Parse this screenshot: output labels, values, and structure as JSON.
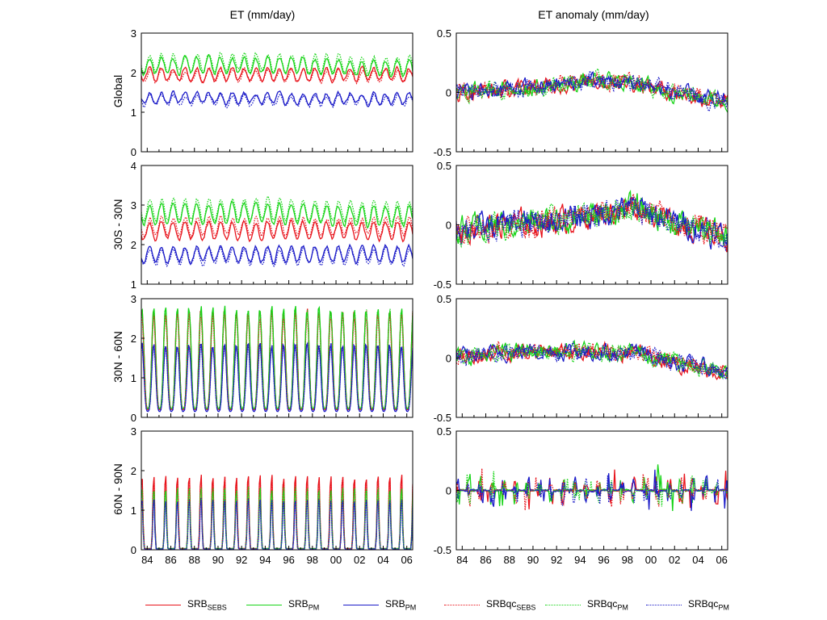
{
  "column_titles": {
    "left": "ET (mm/day)",
    "right": "ET anomaly (mm/day)"
  },
  "row_labels": [
    "Global",
    "30S - 30N",
    "30N - 60N",
    "60N - 90N"
  ],
  "x_tick_labels": [
    "84",
    "86",
    "88",
    "90",
    "92",
    "94",
    "96",
    "98",
    "00",
    "02",
    "04",
    "06"
  ],
  "legend": [
    {
      "base": "SRB",
      "sub": "SEBS",
      "color": "#e8141c",
      "style": "solid"
    },
    {
      "base": "SRB",
      "sub": "PM",
      "color": "#18d418",
      "style": "solid"
    },
    {
      "base": "SRB",
      "sub": "PM",
      "color": "#1c1cc8",
      "style": "solid"
    },
    {
      "base": "SRBqc",
      "sub": "SEBS",
      "color": "#e8141c",
      "style": "dotted"
    },
    {
      "base": "SRBqc",
      "sub": "PM",
      "color": "#18d418",
      "style": "dotted"
    },
    {
      "base": "SRBqc",
      "sub": "PM",
      "color": "#1c1cc8",
      "style": "dotted"
    }
  ],
  "colors": {
    "red": "#e8141c",
    "green": "#18d418",
    "blue": "#1c1cc8",
    "axis": "#000000"
  },
  "chart_data": [
    {
      "panel": "ET-Global",
      "type": "line",
      "x_range": [
        1983.5,
        2006.5
      ],
      "ylim": [
        0,
        3
      ],
      "y_ticks": [
        "0",
        "1",
        "2",
        "3"
      ],
      "x_years": [
        1984,
        2006
      ],
      "months_per_point": 1,
      "series": [
        {
          "color": "#e8141c",
          "style": "solid",
          "mean": 1.95,
          "amplitude": 0.16,
          "phase": 0,
          "trend": 0.0
        },
        {
          "color": "#18d418",
          "style": "solid",
          "mean": 2.15,
          "amplitude": 0.2,
          "phase": 0,
          "trend": 0.05
        },
        {
          "color": "#1c1cc8",
          "style": "solid",
          "mean": 1.35,
          "amplitude": 0.14,
          "phase": 0,
          "trend": 0.0
        },
        {
          "color": "#e8141c",
          "style": "dotted",
          "mean": 1.92,
          "amplitude": 0.15,
          "phase": 0.3,
          "trend": 0.0
        },
        {
          "color": "#18d418",
          "style": "dotted",
          "mean": 2.22,
          "amplitude": 0.22,
          "phase": 0.3,
          "trend": 0.05
        },
        {
          "color": "#1c1cc8",
          "style": "dotted",
          "mean": 1.3,
          "amplitude": 0.13,
          "phase": 0.3,
          "trend": 0.0
        }
      ]
    },
    {
      "panel": "ET-Tropics",
      "type": "line",
      "x_range": [
        1983.5,
        2006.5
      ],
      "ylim": [
        1,
        4
      ],
      "y_ticks": [
        "1",
        "2",
        "3",
        "4"
      ],
      "x_years": [
        1984,
        2006
      ],
      "months_per_point": 1,
      "series": [
        {
          "color": "#e8141c",
          "style": "solid",
          "mean": 2.35,
          "amplitude": 0.22,
          "phase": 0,
          "trend": 0.0
        },
        {
          "color": "#18d418",
          "style": "solid",
          "mean": 2.75,
          "amplitude": 0.25,
          "phase": 0,
          "trend": 0.05
        },
        {
          "color": "#1c1cc8",
          "style": "solid",
          "mean": 1.75,
          "amplitude": 0.2,
          "phase": 0,
          "trend": 0.0
        },
        {
          "color": "#e8141c",
          "style": "dotted",
          "mean": 2.45,
          "amplitude": 0.22,
          "phase": 0.3,
          "trend": 0.0
        },
        {
          "color": "#18d418",
          "style": "dotted",
          "mean": 2.85,
          "amplitude": 0.27,
          "phase": 0.3,
          "trend": 0.05
        },
        {
          "color": "#1c1cc8",
          "style": "dotted",
          "mean": 1.7,
          "amplitude": 0.2,
          "phase": 0.3,
          "trend": 0.0
        }
      ]
    },
    {
      "panel": "ET-MidLat",
      "type": "line",
      "x_range": [
        1983.5,
        2006.5
      ],
      "ylim": [
        0,
        3
      ],
      "y_ticks": [
        "0",
        "1",
        "2",
        "3"
      ],
      "x_years": [
        1984,
        2006
      ],
      "months_per_point": 1,
      "seasonal": true,
      "series": [
        {
          "color": "#e8141c",
          "style": "solid",
          "peak": 2.7,
          "base": 0.2
        },
        {
          "color": "#18d418",
          "style": "solid",
          "peak": 2.78,
          "base": 0.22
        },
        {
          "color": "#1c1cc8",
          "style": "solid",
          "peak": 1.85,
          "base": 0.15
        },
        {
          "color": "#e8141c",
          "style": "dotted",
          "peak": 2.6,
          "base": 0.2
        },
        {
          "color": "#18d418",
          "style": "dotted",
          "peak": 2.72,
          "base": 0.22
        },
        {
          "color": "#1c1cc8",
          "style": "dotted",
          "peak": 1.8,
          "base": 0.15
        }
      ]
    },
    {
      "panel": "ET-HighLat",
      "type": "line",
      "x_range": [
        1983.5,
        2006.5
      ],
      "ylim": [
        0,
        3
      ],
      "y_ticks": [
        "0",
        "1",
        "2",
        "3"
      ],
      "x_years": [
        1984,
        2006
      ],
      "months_per_point": 1,
      "seasonal": true,
      "sharp": true,
      "series": [
        {
          "color": "#e8141c",
          "style": "solid",
          "peak": 2.0,
          "base": 0.03
        },
        {
          "color": "#18d418",
          "style": "solid",
          "peak": 1.7,
          "base": 0.03
        },
        {
          "color": "#1c1cc8",
          "style": "solid",
          "peak": 1.38,
          "base": 0.02
        },
        {
          "color": "#e8141c",
          "style": "dotted",
          "peak": 1.95,
          "base": 0.03
        },
        {
          "color": "#18d418",
          "style": "dotted",
          "peak": 1.65,
          "base": 0.03
        },
        {
          "color": "#1c1cc8",
          "style": "dotted",
          "peak": 1.35,
          "base": 0.02
        }
      ]
    },
    {
      "panel": "Anom-Global",
      "type": "line",
      "x_range": [
        1983.5,
        2006.5
      ],
      "ylim": [
        -0.5,
        0.5
      ],
      "y_ticks": [
        "-0.5",
        "0",
        "0.5"
      ],
      "anomaly": true,
      "noise": 0.05,
      "trend_shape": [
        0,
        0.02,
        0.05,
        0.1,
        0.08,
        -0.02,
        -0.08
      ],
      "series_colors": [
        "#e8141c",
        "#18d418",
        "#1c1cc8",
        "#e8141c",
        "#18d418",
        "#1c1cc8"
      ],
      "series_styles": [
        "solid",
        "solid",
        "solid",
        "dotted",
        "dotted",
        "dotted"
      ]
    },
    {
      "panel": "Anom-Tropics",
      "type": "line",
      "x_range": [
        1983.5,
        2006.5
      ],
      "ylim": [
        -0.5,
        0.5
      ],
      "y_ticks": [
        "-0.5",
        "0",
        "0.5"
      ],
      "anomaly": true,
      "noise": 0.08,
      "trend_shape": [
        -0.05,
        0.0,
        0.02,
        0.08,
        0.15,
        0.0,
        -0.1
      ],
      "series_colors": [
        "#e8141c",
        "#18d418",
        "#1c1cc8",
        "#e8141c",
        "#18d418",
        "#1c1cc8"
      ],
      "series_styles": [
        "solid",
        "solid",
        "solid",
        "dotted",
        "dotted",
        "dotted"
      ]
    },
    {
      "panel": "Anom-MidLat",
      "type": "line",
      "x_range": [
        1983.5,
        2006.5
      ],
      "ylim": [
        -0.5,
        0.5
      ],
      "y_ticks": [
        "-0.5",
        "0",
        "0.5"
      ],
      "anomaly": true,
      "noise": 0.05,
      "trend_shape": [
        0.0,
        0.05,
        0.06,
        0.05,
        0.05,
        -0.05,
        -0.12
      ],
      "series_colors": [
        "#e8141c",
        "#18d418",
        "#1c1cc8",
        "#e8141c",
        "#18d418",
        "#1c1cc8"
      ],
      "series_styles": [
        "solid",
        "solid",
        "solid",
        "dotted",
        "dotted",
        "dotted"
      ]
    },
    {
      "panel": "Anom-HighLat",
      "type": "line",
      "x_range": [
        1983.5,
        2006.5
      ],
      "ylim": [
        -0.5,
        0.5
      ],
      "y_ticks": [
        "-0.5",
        "0",
        "0.5"
      ],
      "anomaly": true,
      "noise": 0.02,
      "spiky": true,
      "trend_shape": [
        0,
        0,
        0,
        0,
        0,
        0,
        0
      ],
      "series_colors": [
        "#e8141c",
        "#18d418",
        "#1c1cc8",
        "#e8141c",
        "#18d418",
        "#1c1cc8"
      ],
      "series_styles": [
        "solid",
        "solid",
        "solid",
        "dotted",
        "dotted",
        "dotted"
      ]
    }
  ]
}
